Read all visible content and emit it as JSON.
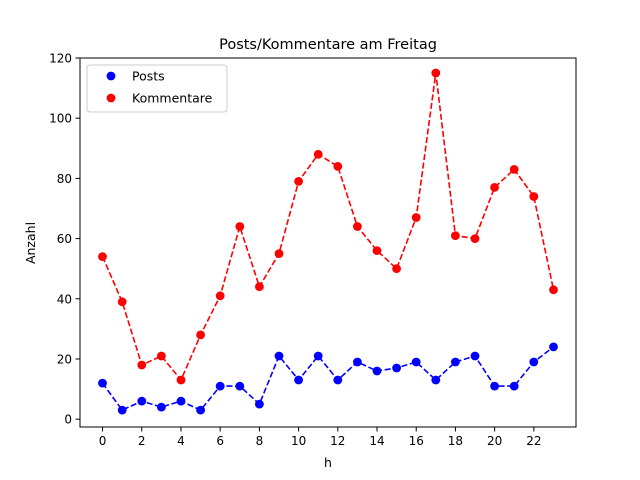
{
  "chart_data": {
    "type": "line",
    "title": "Posts/Kommentare am Freitag",
    "xlabel": "h",
    "ylabel": "Anzahl",
    "x": [
      0,
      1,
      2,
      3,
      4,
      5,
      6,
      7,
      8,
      9,
      10,
      11,
      12,
      13,
      14,
      15,
      16,
      17,
      18,
      19,
      20,
      21,
      22,
      23
    ],
    "xlim": [
      -1.15,
      24.15
    ],
    "ylim": [
      -2.6,
      120
    ],
    "xticks": [
      0,
      2,
      4,
      6,
      8,
      10,
      12,
      14,
      16,
      18,
      20,
      22
    ],
    "yticks": [
      0,
      20,
      40,
      60,
      80,
      100,
      120
    ],
    "grid": false,
    "legend_position": "top-left",
    "series": [
      {
        "name": "Posts",
        "color": "#0000ff",
        "line_style": "dashed",
        "marker": "circle",
        "values": [
          12,
          3,
          6,
          4,
          6,
          3,
          11,
          11,
          5,
          21,
          13,
          21,
          13,
          19,
          16,
          17,
          19,
          13,
          19,
          21,
          11,
          11,
          19,
          24
        ]
      },
      {
        "name": "Kommentare",
        "color": "#ff0000",
        "line_style": "dashed",
        "marker": "circle",
        "values": [
          54,
          39,
          18,
          21,
          13,
          28,
          41,
          64,
          44,
          55,
          79,
          88,
          84,
          64,
          56,
          50,
          67,
          115,
          61,
          60,
          77,
          83,
          74,
          43
        ]
      }
    ]
  }
}
